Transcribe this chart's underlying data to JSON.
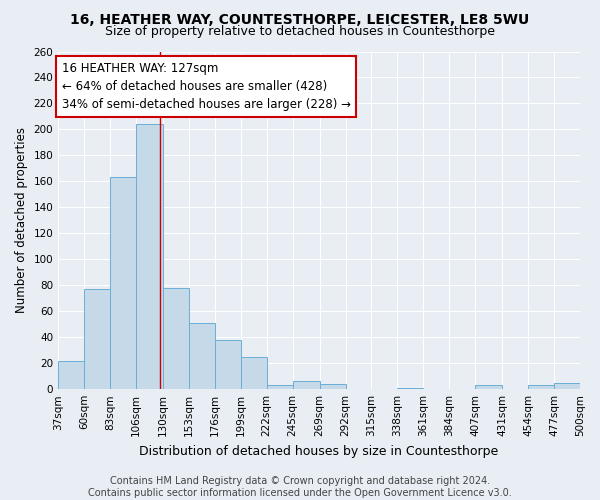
{
  "title": "16, HEATHER WAY, COUNTESTHORPE, LEICESTER, LE8 5WU",
  "subtitle": "Size of property relative to detached houses in Countesthorpe",
  "xlabel": "Distribution of detached houses by size in Countesthorpe",
  "ylabel": "Number of detached properties",
  "bar_edges": [
    37,
    60,
    83,
    106,
    130,
    153,
    176,
    199,
    222,
    245,
    269,
    292,
    315,
    338,
    361,
    384,
    407,
    431,
    454,
    477,
    500
  ],
  "bar_heights": [
    22,
    77,
    163,
    204,
    78,
    51,
    38,
    25,
    3,
    6,
    4,
    0,
    0,
    1,
    0,
    0,
    3,
    0,
    3,
    5
  ],
  "bar_color": "#c5d9e8",
  "bar_edge_color": "#6aaed6",
  "property_size": 127,
  "vline_color": "#cc0000",
  "annotation_line1": "16 HEATHER WAY: 127sqm",
  "annotation_line2": "← 64% of detached houses are smaller (428)",
  "annotation_line3": "34% of semi-detached houses are larger (228) →",
  "annotation_box_color": "#ffffff",
  "annotation_box_edge_color": "#cc0000",
  "ylim": [
    0,
    260
  ],
  "yticks": [
    0,
    20,
    40,
    60,
    80,
    100,
    120,
    140,
    160,
    180,
    200,
    220,
    240,
    260
  ],
  "tick_labels": [
    "37sqm",
    "60sqm",
    "83sqm",
    "106sqm",
    "130sqm",
    "153sqm",
    "176sqm",
    "199sqm",
    "222sqm",
    "245sqm",
    "269sqm",
    "292sqm",
    "315sqm",
    "338sqm",
    "361sqm",
    "384sqm",
    "407sqm",
    "431sqm",
    "454sqm",
    "477sqm",
    "500sqm"
  ],
  "background_color": "#e8eef4",
  "grid_color": "#ffffff",
  "footer_text": "Contains HM Land Registry data © Crown copyright and database right 2024.\nContains public sector information licensed under the Open Government Licence v3.0.",
  "title_fontsize": 10,
  "subtitle_fontsize": 9,
  "xlabel_fontsize": 9,
  "ylabel_fontsize": 8.5,
  "tick_fontsize": 7.5,
  "annotation_fontsize": 8.5,
  "footer_fontsize": 7
}
